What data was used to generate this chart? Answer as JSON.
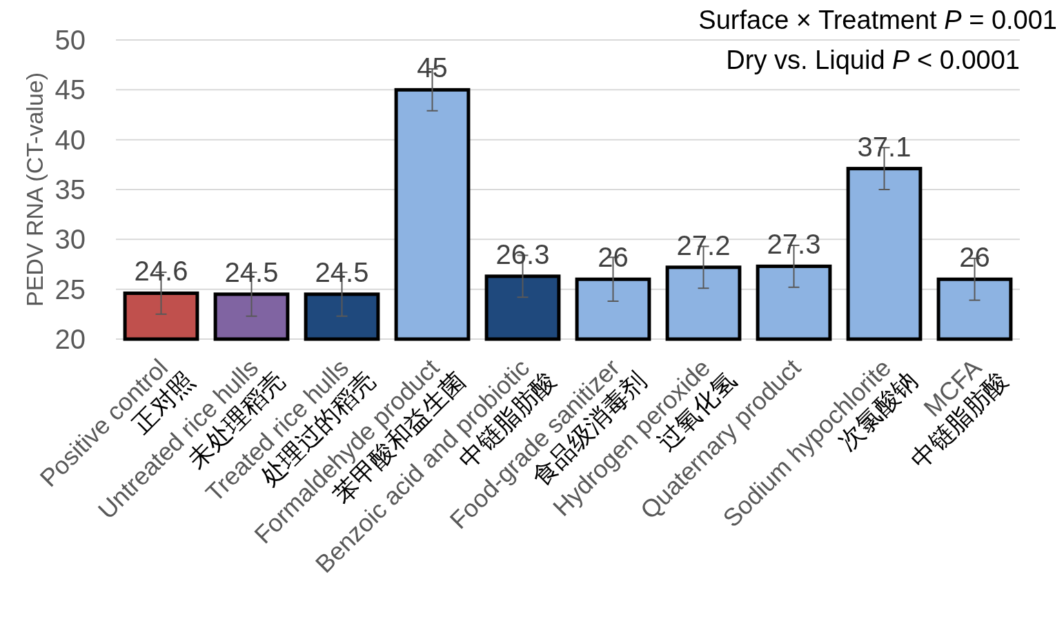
{
  "chart_data": {
    "type": "bar",
    "ylabel": "PEDV RNA (CT-value)",
    "categories": [
      "Positive control\n正对照",
      "Untreated rice hulls\n未处理稻壳",
      "Treated rice hulls\n处理过的稻壳",
      "Formaldehyde product\n苯甲酸和益生菌",
      "Benzoic acid and probiotic\n中链脂肪酸",
      "Food-grade sanitizer\n食品级消毒剂",
      "Hydrogen peroxide\n过氧化氢",
      "Quaternary product",
      "Sodium hypochlorite\n次氯酸钠",
      "MCFA\n中链脂肪酸"
    ],
    "values": [
      24.6,
      24.5,
      24.5,
      45,
      26.3,
      26,
      27.2,
      27.3,
      37.1,
      26
    ],
    "errors": [
      2.1,
      2.2,
      2.2,
      2.1,
      2.1,
      2.2,
      2.1,
      2.1,
      2.1,
      2.1
    ],
    "colors": [
      "#c0504d",
      "#8064a2",
      "#1f497d",
      "#8db3e2",
      "#1f497d",
      "#8db3e2",
      "#8db3e2",
      "#8db3e2",
      "#8db3e2",
      "#8db3e2"
    ],
    "ylim": [
      20,
      50
    ],
    "yticks": [
      20,
      25,
      30,
      35,
      40,
      45,
      50
    ],
    "grid": "y",
    "data_labels": true,
    "annotations": [
      "Surface × Treatment *P* = 0.001",
      "Dry vs. Liquid *P* < 0.0001"
    ]
  }
}
